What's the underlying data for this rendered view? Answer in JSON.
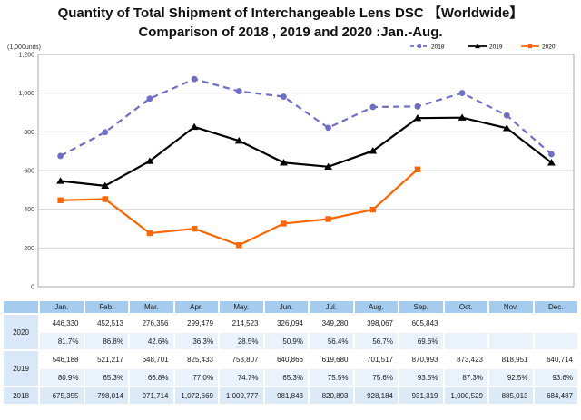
{
  "title": {
    "line1": "Quantity of Total Shipment of Interchangeable Lens DSC 【Worldwide】",
    "line2": "Comparison of 2018 , 2019 and 2020 :Jan.-Aug."
  },
  "chart_data": {
    "type": "line",
    "unit_label": "(1,000units)",
    "categories": [
      "Jan.",
      "Feb.",
      "Mar.",
      "Apr.",
      "May.",
      "Jun.",
      "Jul.",
      "Aug.",
      "Sep.",
      "Oct.",
      "Nov.",
      "Dec."
    ],
    "ylim": [
      0,
      1200
    ],
    "ytick_interval": 200,
    "grid": "horizontal-only",
    "legend_position": "top-right",
    "series": [
      {
        "name": "2018",
        "color": "#6E6EC8",
        "style": "dashed",
        "marker": "circle",
        "values": [
          675.355,
          798.014,
          971.714,
          1072.669,
          1009.777,
          981.843,
          820.893,
          928.184,
          931.319,
          1000.529,
          885.013,
          684.487
        ]
      },
      {
        "name": "2019",
        "color": "#000000",
        "style": "solid",
        "marker": "triangle",
        "values": [
          546.188,
          521.217,
          648.701,
          825.433,
          753.807,
          640.866,
          619.68,
          701.517,
          870.993,
          873.423,
          818.951,
          640.714
        ]
      },
      {
        "name": "2020",
        "color": "#FF6600",
        "style": "solid",
        "marker": "square",
        "values": [
          446.33,
          452.513,
          276.356,
          299.479,
          214.523,
          326.094,
          349.28,
          398.067,
          605.843,
          null,
          null,
          null
        ]
      }
    ]
  },
  "table": {
    "month_headers": [
      "Jan.",
      "Feb.",
      "Mar.",
      "Apr.",
      "May.",
      "Jun.",
      "Jul.",
      "Aug.",
      "Sep.",
      "Oct.",
      "Nov.",
      "Dec."
    ],
    "rows": [
      {
        "year": "2020",
        "values": [
          "446,330",
          "452,513",
          "276,356",
          "299,479",
          "214,523",
          "326,094",
          "349,280",
          "398,067",
          "605,843",
          "",
          "",
          ""
        ],
        "percents": [
          "81.7%",
          "86.8%",
          "42.6%",
          "36.3%",
          "28.5%",
          "50.9%",
          "56.4%",
          "56.7%",
          "69.6%",
          "",
          "",
          ""
        ]
      },
      {
        "year": "2019",
        "values": [
          "546,188",
          "521,217",
          "648,701",
          "825,433",
          "753,807",
          "640,866",
          "619,680",
          "701,517",
          "870,993",
          "873,423",
          "818,951",
          "640,714"
        ],
        "percents": [
          "80.9%",
          "65.3%",
          "66.8%",
          "77.0%",
          "74.7%",
          "65.3%",
          "75.5%",
          "75.6%",
          "93.5%",
          "87.3%",
          "92.5%",
          "93.6%"
        ]
      },
      {
        "year": "2018",
        "values": [
          "675,355",
          "798,014",
          "971,714",
          "1,072,669",
          "1,009,777",
          "981,843",
          "820,893",
          "928,184",
          "931,319",
          "1,000,529",
          "885,013",
          "684,487"
        ],
        "percents": null
      }
    ]
  },
  "colors": {
    "table_header_bg": "#A5CBEF",
    "table_year_bg": "#D9E8F8",
    "table_pct_row_bg": "#EAF3FB",
    "table_single_row_bg": "#DCEAF7",
    "gridline": "#D4D4D4",
    "plot_border": "#AAAAAA",
    "axis_text": "#333333"
  }
}
